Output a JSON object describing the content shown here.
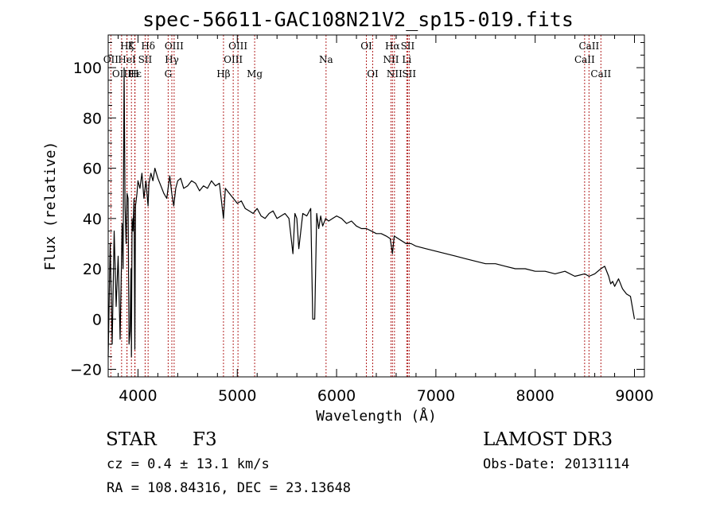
{
  "page": {
    "title": "spec-56611-GAC108N21V2_sp15-019.fits"
  },
  "info": {
    "object_class": "STAR",
    "subclass": "F3",
    "survey": "LAMOST DR3",
    "cz": "cz = 0.4 ± 13.1 km/s",
    "obs_date": "Obs-Date: 20131114",
    "coords": "RA = 108.84316, DEC =  23.13648"
  },
  "chart_data": {
    "type": "line",
    "title": "spec-56611-GAC108N21V2_sp15-019.fits",
    "xlabel": "Wavelength (Å)",
    "ylabel": "Flux (relative)",
    "xlim": [
      3700,
      9100
    ],
    "ylim": [
      -23,
      113
    ],
    "xticks": [
      4000,
      5000,
      6000,
      7000,
      8000,
      9000
    ],
    "yticks": [
      -20,
      0,
      20,
      40,
      60,
      80,
      100
    ],
    "line_color": "#000000",
    "marker_color": "#b22222",
    "series": [
      {
        "name": "spectrum",
        "x": [
          3700,
          3720,
          3740,
          3760,
          3780,
          3800,
          3820,
          3840,
          3850,
          3860,
          3870,
          3880,
          3890,
          3900,
          3910,
          3920,
          3930,
          3934,
          3940,
          3950,
          3960,
          3968,
          3975,
          3990,
          4000,
          4020,
          4040,
          4060,
          4080,
          4101,
          4110,
          4130,
          4150,
          4170,
          4200,
          4230,
          4260,
          4290,
          4320,
          4340,
          4360,
          4380,
          4400,
          4430,
          4460,
          4500,
          4540,
          4580,
          4620,
          4660,
          4700,
          4740,
          4780,
          4820,
          4861,
          4880,
          4920,
          4960,
          5000,
          5040,
          5080,
          5120,
          5160,
          5200,
          5240,
          5280,
          5320,
          5360,
          5400,
          5440,
          5480,
          5520,
          5560,
          5580,
          5600,
          5620,
          5660,
          5700,
          5740,
          5760,
          5770,
          5780,
          5800,
          5820,
          5840,
          5860,
          5890,
          5920,
          5960,
          6000,
          6050,
          6100,
          6150,
          6200,
          6250,
          6300,
          6350,
          6400,
          6450,
          6500,
          6540,
          6563,
          6580,
          6620,
          6660,
          6700,
          6750,
          6800,
          6900,
          7000,
          7100,
          7200,
          7300,
          7400,
          7500,
          7600,
          7700,
          7800,
          7900,
          8000,
          8100,
          8200,
          8300,
          8400,
          8498,
          8542,
          8600,
          8662,
          8700,
          8740,
          8760,
          8780,
          8800,
          8840,
          8880,
          8920,
          8960,
          9000
        ],
        "y": [
          -15,
          30,
          -10,
          35,
          5,
          25,
          -8,
          38,
          20,
          100,
          45,
          30,
          50,
          48,
          -10,
          -5,
          20,
          -15,
          40,
          35,
          48,
          -12,
          45,
          50,
          55,
          52,
          58,
          48,
          55,
          45,
          54,
          58,
          55,
          60,
          56,
          53,
          50,
          48,
          57,
          50,
          45,
          52,
          55,
          56,
          52,
          53,
          55,
          54,
          51,
          53,
          52,
          55,
          53,
          54,
          40,
          52,
          50,
          48,
          46,
          47,
          44,
          43,
          42,
          44,
          41,
          40,
          42,
          43,
          40,
          41,
          42,
          40,
          26,
          42,
          40,
          28,
          42,
          41,
          44,
          0,
          0,
          0,
          42,
          36,
          41,
          37,
          40,
          39,
          40,
          41,
          40,
          38,
          39,
          37,
          36,
          36,
          35,
          34,
          34,
          33,
          32,
          26,
          33,
          32,
          31,
          30,
          30,
          29,
          28,
          27,
          26,
          25,
          24,
          23,
          22,
          22,
          21,
          20,
          20,
          19,
          19,
          18,
          19,
          17,
          18,
          17,
          18,
          20,
          21,
          17,
          14,
          15,
          13,
          16,
          12,
          10,
          9,
          0
        ]
      }
    ],
    "lines": [
      {
        "wl": 3727,
        "label": "OII",
        "row": 2
      },
      {
        "wl": 3835,
        "label": "OIII",
        "row": 3
      },
      {
        "wl": 3889,
        "label": "Hζ",
        "row": 1
      },
      {
        "wl": 3889,
        "label": "HeI",
        "row": 2
      },
      {
        "wl": 3934,
        "label": "K",
        "row": 1
      },
      {
        "wl": 3970,
        "label": "Hε",
        "row": 3
      },
      {
        "wl": 3968,
        "label": "H",
        "row": 3
      },
      {
        "wl": 4072,
        "label": "SII",
        "row": 2
      },
      {
        "wl": 4102,
        "label": "Hδ",
        "row": 1
      },
      {
        "wl": 4304,
        "label": "G",
        "row": 3
      },
      {
        "wl": 4341,
        "label": "Hγ",
        "row": 2
      },
      {
        "wl": 4364,
        "label": "OIII",
        "row": 1
      },
      {
        "wl": 4861,
        "label": "Hβ",
        "row": 3
      },
      {
        "wl": 4959,
        "label": "OIII",
        "row": 2
      },
      {
        "wl": 5007,
        "label": "OIII",
        "row": 1
      },
      {
        "wl": 5175,
        "label": "Mg",
        "row": 3
      },
      {
        "wl": 5894,
        "label": "Na",
        "row": 2
      },
      {
        "wl": 6300,
        "label": "OI",
        "row": 1
      },
      {
        "wl": 6364,
        "label": "OI",
        "row": 3
      },
      {
        "wl": 6548,
        "label": "NII",
        "row": 2
      },
      {
        "wl": 6563,
        "label": "Hα",
        "row": 1
      },
      {
        "wl": 6583,
        "label": "NII",
        "row": 3
      },
      {
        "wl": 6707,
        "label": "Li",
        "row": 2
      },
      {
        "wl": 6716,
        "label": "SII",
        "row": 1
      },
      {
        "wl": 6731,
        "label": "SII",
        "row": 3
      },
      {
        "wl": 8498,
        "label": "CaII",
        "row": 2
      },
      {
        "wl": 8542,
        "label": "CaII",
        "row": 1
      },
      {
        "wl": 8662,
        "label": "CaII",
        "row": 3
      }
    ]
  }
}
